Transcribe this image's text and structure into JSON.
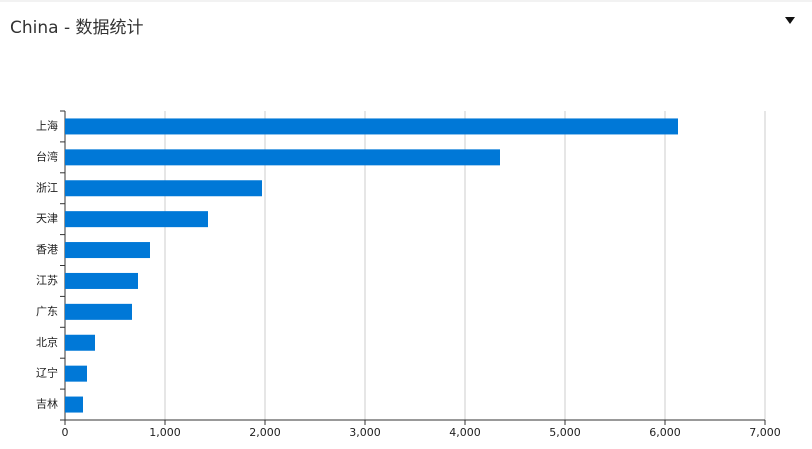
{
  "chart_data": {
    "type": "bar",
    "orientation": "horizontal",
    "title": "China - 数据统计",
    "categories": [
      "上海",
      "台湾",
      "浙江",
      "天津",
      "香港",
      "江苏",
      "广东",
      "北京",
      "辽宁",
      "吉林"
    ],
    "values": [
      6130,
      4350,
      1970,
      1430,
      850,
      730,
      670,
      300,
      220,
      180
    ],
    "color": "#0078d7",
    "xlim": [
      0,
      7000
    ],
    "xticks": [
      0,
      {
        "value": 1000,
        "label": "1,000"
      },
      {
        "value": 2000,
        "label": "2,000"
      },
      {
        "value": 3000,
        "label": "3,000"
      },
      {
        "value": 4000,
        "label": "4,000"
      },
      {
        "value": 5000,
        "label": "5,000"
      },
      {
        "value": 6000,
        "label": "6,000"
      },
      {
        "value": 7000,
        "label": "7,000"
      }
    ],
    "grid": true
  }
}
